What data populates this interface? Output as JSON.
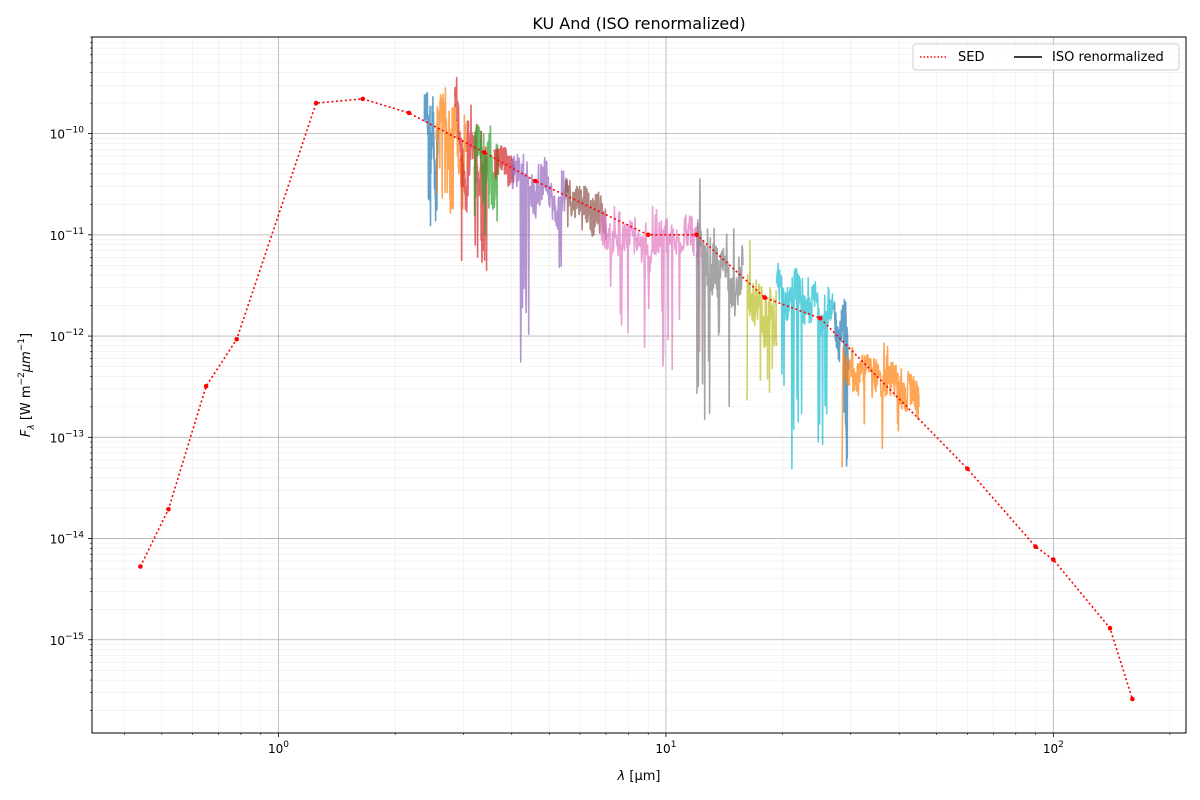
{
  "chart_data": {
    "type": "line",
    "title": "KU And (ISO renormalized)",
    "xlabel_symbol": "λ",
    "xlabel_unit": "[μm]",
    "ylabel_symbol": "F",
    "ylabel_sub": "λ",
    "ylabel_unit_a": "[W m",
    "ylabel_sup1": "−2",
    "ylabel_unit_b": "μm",
    "ylabel_sup2": "−1",
    "ylabel_end": "]",
    "x_scale": "log",
    "y_scale": "log",
    "xlim": [
      0.33,
      220
    ],
    "ylim": [
      1.2e-16,
      9e-10
    ],
    "grid": true,
    "legend_position": "top-right",
    "x_ticks": [
      {
        "value": 1,
        "base": "10",
        "exp": "0"
      },
      {
        "value": 10,
        "base": "10",
        "exp": "1"
      },
      {
        "value": 100,
        "base": "10",
        "exp": "2"
      }
    ],
    "y_ticks": [
      {
        "value": 1e-15,
        "base": "10",
        "exp": "−15"
      },
      {
        "value": 1e-14,
        "base": "10",
        "exp": "−14"
      },
      {
        "value": 1e-13,
        "base": "10",
        "exp": "−13"
      },
      {
        "value": 1e-12,
        "base": "10",
        "exp": "−12"
      },
      {
        "value": 1e-11,
        "base": "10",
        "exp": "−11"
      },
      {
        "value": 1e-10,
        "base": "10",
        "exp": "−10"
      }
    ],
    "legend": [
      {
        "label": "SED",
        "style": "dotted",
        "color": "#ff0000"
      },
      {
        "label": "ISO renormalized",
        "style": "solid",
        "color": "#000000"
      }
    ],
    "sed": {
      "name": "SED",
      "color": "#ff0000",
      "x": [
        0.44,
        0.52,
        0.65,
        0.78,
        1.25,
        1.65,
        2.17,
        3.4,
        4.6,
        9.0,
        12.0,
        18.0,
        25.0,
        60.0,
        90.0,
        100.0,
        140.0,
        160.0
      ],
      "y": [
        5.3e-15,
        1.95e-14,
        3.2e-13,
        9.3e-13,
        2e-10,
        2.2e-10,
        1.6e-10,
        6.5e-11,
        3.4e-11,
        1e-11,
        1e-11,
        2.4e-12,
        1.5e-12,
        4.9e-14,
        8.3e-15,
        6.2e-15,
        1.3e-15,
        2.6e-16
      ]
    },
    "iso_segments": [
      {
        "color": "#1f77b4",
        "x": [
          2.38,
          2.42,
          2.46,
          2.5,
          2.54,
          2.58
        ],
        "y": [
          1.6e-10,
          2e-10,
          4e-11,
          1.3e-10,
          2.5e-11,
          9e-11
        ],
        "lo": [
          2e-11,
          1.5e-11,
          1e-11,
          1.5e-11,
          1.2e-11,
          2e-11
        ],
        "hi": [
          2.5e-10,
          2.8e-10,
          2.2e-10,
          2.4e-10,
          2e-10,
          1.6e-10
        ]
      },
      {
        "color": "#ff7f0e",
        "x": [
          2.55,
          2.65,
          2.75,
          2.85,
          2.95,
          3.05
        ],
        "y": [
          1.2e-10,
          2e-10,
          6e-11,
          1.5e-10,
          4e-11,
          8e-11
        ],
        "lo": [
          2e-11,
          1.5e-11,
          1.5e-11,
          2e-11,
          1.5e-11,
          2e-11
        ],
        "hi": [
          4.5e-10,
          3e-10,
          1.8e-10,
          2e-10,
          1.6e-10,
          1.5e-10
        ]
      },
      {
        "color": "#d62728",
        "x": [
          2.85,
          2.95,
          3.05,
          3.15,
          3.3,
          3.45
        ],
        "y": [
          3e-10,
          8e-11,
          2e-11,
          1e-10,
          3e-11,
          6e-11
        ],
        "lo": [
          5e-12,
          4e-12,
          3e-12,
          5e-12,
          4e-12,
          6e-12
        ],
        "hi": [
          4.5e-10,
          3e-10,
          2e-10,
          1.6e-10,
          1.2e-10,
          1e-10
        ]
      },
      {
        "color": "#2ca02c",
        "x": [
          3.2,
          3.3,
          3.4,
          3.5,
          3.6,
          3.7
        ],
        "y": [
          6e-11,
          1e-10,
          3e-11,
          8e-11,
          2.5e-11,
          5e-11
        ],
        "lo": [
          1.5e-11,
          2e-11,
          1e-11,
          1.5e-11,
          8e-12,
          1e-11
        ],
        "hi": [
          1.2e-10,
          1.3e-10,
          1e-10,
          1.2e-10,
          9e-11,
          8e-11
        ]
      },
      {
        "color": "#d62728",
        "x": [
          3.6,
          3.75,
          3.9,
          4.05
        ],
        "y": [
          5e-11,
          6.5e-11,
          4.5e-11,
          5e-11
        ],
        "lo": [
          3.5e-11,
          4e-11,
          3e-11,
          3.5e-11
        ],
        "hi": [
          7e-11,
          7.5e-11,
          6e-11,
          6.5e-11
        ]
      },
      {
        "color": "#9467bd",
        "x": [
          4.0,
          4.3,
          4.6,
          4.9,
          5.2,
          5.6
        ],
        "y": [
          4e-11,
          5e-11,
          2e-11,
          4e-11,
          1.5e-11,
          3e-11
        ],
        "lo": [
          5e-13,
          8e-13,
          7e-13,
          3e-12,
          4e-12,
          5e-12
        ],
        "hi": [
          7e-11,
          6.5e-11,
          6e-11,
          6e-11,
          5e-11,
          4.5e-11
        ]
      },
      {
        "color": "#8c564b",
        "x": [
          5.5,
          5.8,
          6.1,
          6.4,
          6.7,
          7.0
        ],
        "y": [
          3e-11,
          2e-11,
          2.5e-11,
          1.5e-11,
          2e-11,
          1.2e-11
        ],
        "lo": [
          1.2e-11,
          8e-12,
          1e-11,
          8e-12,
          9e-12,
          8e-12
        ],
        "hi": [
          3.5e-11,
          3e-11,
          3e-11,
          2.5e-11,
          2.8e-11,
          2e-11
        ]
      },
      {
        "color": "#e377c2",
        "x": [
          6.8,
          7.5,
          8.2,
          9.0,
          9.8,
          10.6,
          11.5,
          12.3
        ],
        "y": [
          1.2e-11,
          8e-12,
          1e-11,
          6e-12,
          1e-11,
          8e-12,
          1.2e-11,
          6e-12
        ],
        "lo": [
          1.5e-12,
          1e-12,
          4.5e-13,
          1e-12,
          4e-13,
          8e-13,
          4e-13,
          7e-13
        ],
        "hi": [
          2e-11,
          2e-11,
          1.8e-11,
          2e-11,
          1.8e-11,
          1.6e-11,
          1.8e-11,
          2e-11
        ]
      },
      {
        "color": "#7f7f7f",
        "x": [
          12.0,
          12.7,
          13.4,
          14.2,
          15.0,
          15.8
        ],
        "y": [
          1e-11,
          5e-12,
          3e-12,
          6e-12,
          2e-12,
          5e-12
        ],
        "lo": [
          1.5e-13,
          1.6e-13,
          6e-13,
          2e-13,
          5e-13,
          4e-13
        ],
        "hi": [
          6e-11,
          1.3e-11,
          1.1e-11,
          1.2e-11,
          8e-12,
          1e-11
        ]
      },
      {
        "color": "#bcbd22",
        "x": [
          16.2,
          16.8,
          17.4,
          18.0,
          18.6,
          19.3
        ],
        "y": [
          3e-12,
          1.5e-12,
          2.5e-12,
          1e-12,
          2e-12,
          8e-13
        ],
        "lo": [
          8e-14,
          5.5e-14,
          1.5e-13,
          2e-13,
          2.5e-13,
          1.5e-13
        ],
        "hi": [
          1.3e-11,
          4e-12,
          4e-12,
          3.5e-12,
          3e-12,
          2.5e-12
        ]
      },
      {
        "color": "#17becf",
        "x": [
          19.3,
          20.5,
          21.7,
          23.0,
          24.3,
          25.7,
          27.0
        ],
        "y": [
          4e-12,
          2e-12,
          3.5e-12,
          1.5e-12,
          2.5e-12,
          1.2e-12,
          1.8e-12
        ],
        "lo": [
          2e-13,
          3e-14,
          1e-13,
          5e-14,
          8e-14,
          1e-13,
          5e-14
        ],
        "hi": [
          6e-12,
          5.5e-12,
          5e-12,
          4.5e-12,
          4e-12,
          3.5e-12,
          3e-12
        ]
      },
      {
        "color": "#1f77b4",
        "x": [
          27.2,
          28.0,
          28.8,
          29.6
        ],
        "y": [
          1.5e-12,
          8e-13,
          2e-12,
          6e-13
        ],
        "lo": [
          5e-14,
          6e-14,
          4.5e-14,
          8e-14
        ],
        "hi": [
          2.5e-12,
          2e-12,
          3e-12,
          1.5e-12
        ]
      },
      {
        "color": "#ff7f0e",
        "x": [
          28.5,
          31.0,
          33.5,
          36.0,
          38.5,
          41.0,
          43.5,
          45.0
        ],
        "y": [
          5e-13,
          3.5e-13,
          6e-13,
          3e-13,
          4e-13,
          2.5e-13,
          3e-13,
          2e-13
        ],
        "lo": [
          5e-14,
          9e-14,
          1.6e-13,
          5e-14,
          1e-13,
          1.5e-13,
          8e-14,
          4.8e-14
        ],
        "hi": [
          8e-13,
          6.5e-13,
          6e-13,
          9e-13,
          5.5e-13,
          4.5e-13,
          4e-13,
          3.5e-13
        ]
      }
    ]
  }
}
